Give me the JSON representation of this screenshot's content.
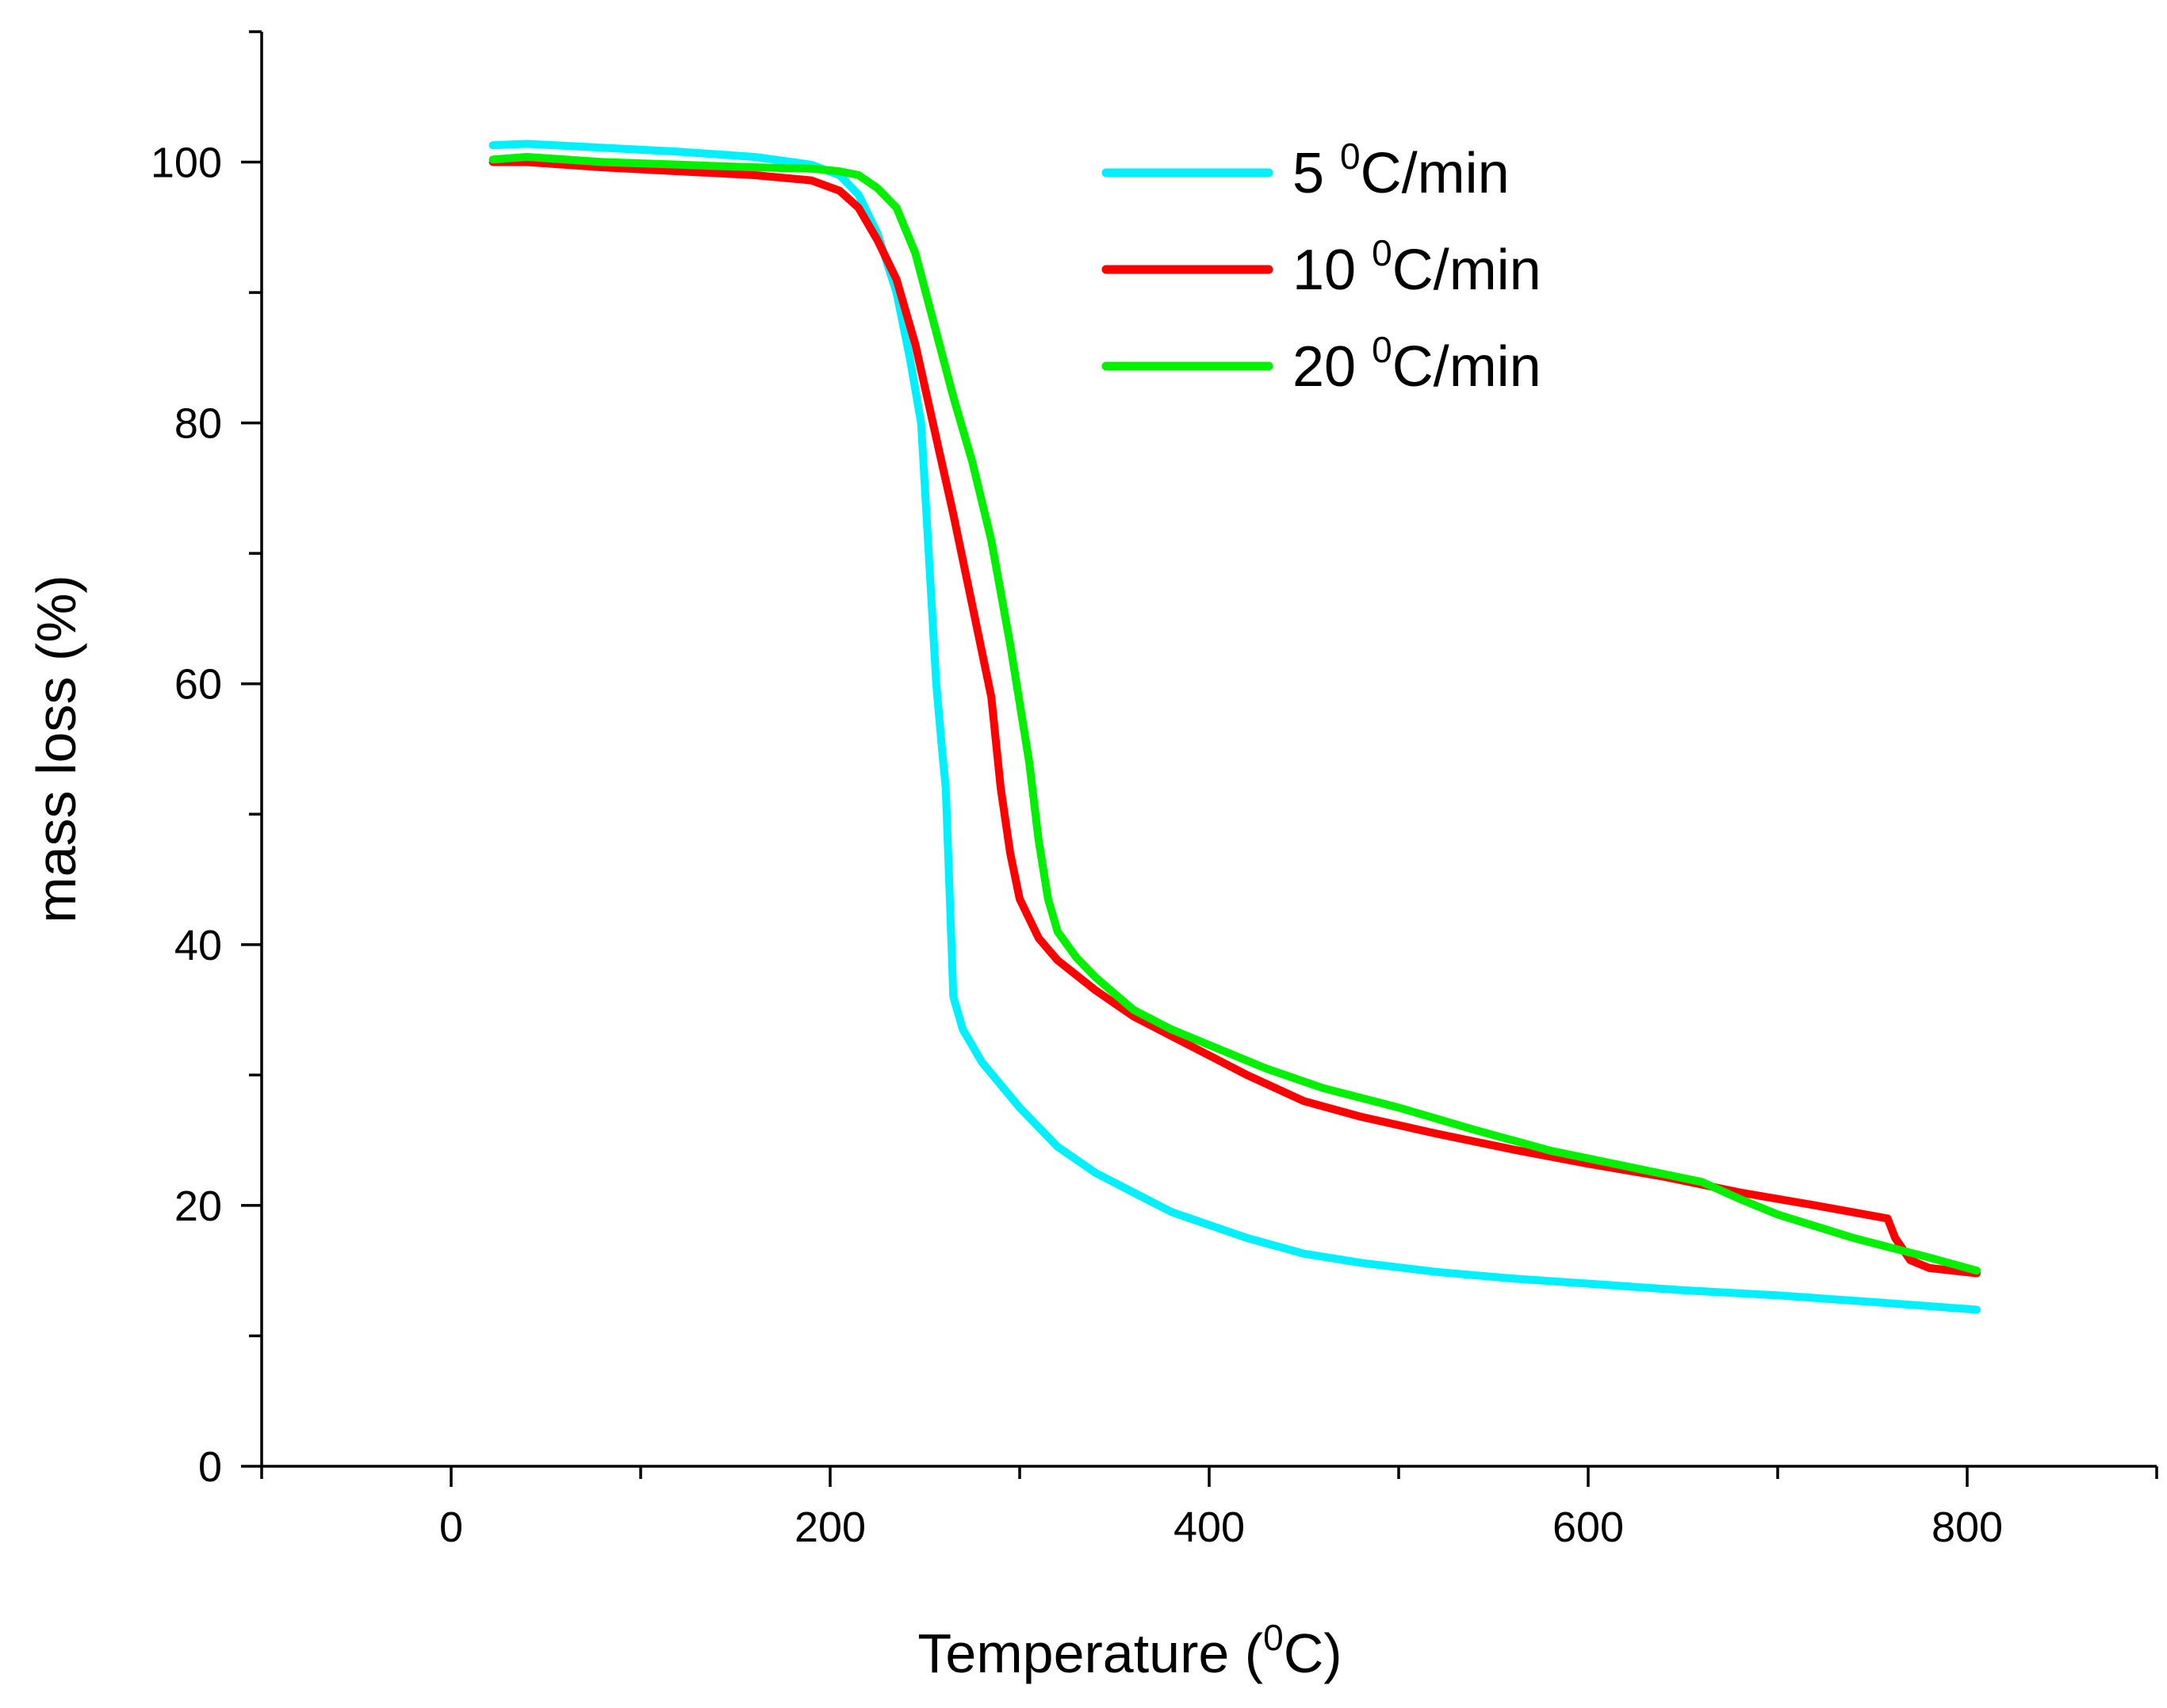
{
  "chart_data": {
    "type": "line",
    "xlabel": "Temperature (⁰C)",
    "xlabel_main": "Temperature (",
    "xlabel_sup": "0",
    "xlabel_end": "C)",
    "ylabel": "mass loss (%)",
    "xlim": [
      -100,
      900
    ],
    "ylim": [
      0,
      110
    ],
    "x_ticks": [
      0,
      200,
      400,
      600,
      800
    ],
    "x_minor_ticks": [
      -100,
      100,
      300,
      500,
      700,
      900
    ],
    "y_ticks": [
      0,
      20,
      40,
      60,
      80,
      100
    ],
    "y_minor_ticks": [
      10,
      30,
      50,
      70,
      90,
      110
    ],
    "grid": false,
    "legend_position": "top-right",
    "series": [
      {
        "name": "5 ⁰C/min",
        "label_main": "5 ",
        "label_sup": "0",
        "label_end": "C/min",
        "color": "#00f0ff",
        "points": [
          [
            22,
            101.3
          ],
          [
            40,
            101.4
          ],
          [
            80,
            101.1
          ],
          [
            120,
            100.8
          ],
          [
            160,
            100.4
          ],
          [
            190,
            99.8
          ],
          [
            205,
            99.0
          ],
          [
            215,
            97.5
          ],
          [
            225,
            94.5
          ],
          [
            235,
            90.0
          ],
          [
            242,
            85.0
          ],
          [
            248,
            80.0
          ],
          [
            252,
            70.0
          ],
          [
            256,
            60.0
          ],
          [
            259,
            55.0
          ],
          [
            261,
            52.0
          ],
          [
            262,
            48.0
          ],
          [
            263,
            44.0
          ],
          [
            264,
            40.0
          ],
          [
            265,
            36.0
          ],
          [
            270,
            33.5
          ],
          [
            280,
            31.0
          ],
          [
            300,
            27.5
          ],
          [
            320,
            24.5
          ],
          [
            340,
            22.5
          ],
          [
            360,
            21.0
          ],
          [
            380,
            19.5
          ],
          [
            400,
            18.5
          ],
          [
            420,
            17.5
          ],
          [
            450,
            16.3
          ],
          [
            480,
            15.6
          ],
          [
            520,
            14.9
          ],
          [
            560,
            14.4
          ],
          [
            600,
            14.0
          ],
          [
            650,
            13.5
          ],
          [
            700,
            13.1
          ],
          [
            750,
            12.6
          ],
          [
            805,
            12.0
          ]
        ]
      },
      {
        "name": "10 ⁰C/min",
        "label_main": "10 ",
        "label_sup": "0",
        "label_end": "C/min",
        "color": "#ff0000",
        "points": [
          [
            22,
            100.0
          ],
          [
            40,
            100.0
          ],
          [
            80,
            99.6
          ],
          [
            120,
            99.3
          ],
          [
            160,
            99.0
          ],
          [
            190,
            98.6
          ],
          [
            205,
            97.8
          ],
          [
            215,
            96.5
          ],
          [
            225,
            94.0
          ],
          [
            235,
            91.0
          ],
          [
            245,
            86.0
          ],
          [
            255,
            79.5
          ],
          [
            265,
            73.0
          ],
          [
            275,
            66.0
          ],
          [
            285,
            59.0
          ],
          [
            290,
            52.0
          ],
          [
            295,
            47.0
          ],
          [
            300,
            43.5
          ],
          [
            310,
            40.5
          ],
          [
            320,
            38.8
          ],
          [
            340,
            36.5
          ],
          [
            360,
            34.5
          ],
          [
            380,
            33.0
          ],
          [
            400,
            31.5
          ],
          [
            420,
            30.0
          ],
          [
            450,
            28.0
          ],
          [
            480,
            26.8
          ],
          [
            520,
            25.5
          ],
          [
            560,
            24.3
          ],
          [
            600,
            23.2
          ],
          [
            640,
            22.2
          ],
          [
            680,
            21.0
          ],
          [
            720,
            20.0
          ],
          [
            758,
            19.0
          ],
          [
            762,
            17.5
          ],
          [
            770,
            15.8
          ],
          [
            780,
            15.2
          ],
          [
            805,
            14.8
          ]
        ]
      },
      {
        "name": "20 ⁰C/min",
        "label_main": "20 ",
        "label_sup": "0",
        "label_end": "C/min",
        "color": "#00f000",
        "points": [
          [
            22,
            100.2
          ],
          [
            40,
            100.4
          ],
          [
            80,
            100.0
          ],
          [
            120,
            99.8
          ],
          [
            160,
            99.6
          ],
          [
            190,
            99.5
          ],
          [
            205,
            99.3
          ],
          [
            215,
            99.0
          ],
          [
            225,
            98.0
          ],
          [
            235,
            96.5
          ],
          [
            245,
            93.0
          ],
          [
            255,
            87.5
          ],
          [
            265,
            82.0
          ],
          [
            275,
            77.0
          ],
          [
            285,
            71.0
          ],
          [
            295,
            63.0
          ],
          [
            305,
            54.0
          ],
          [
            310,
            48.0
          ],
          [
            315,
            43.5
          ],
          [
            320,
            41.0
          ],
          [
            330,
            39.0
          ],
          [
            340,
            37.5
          ],
          [
            360,
            35.0
          ],
          [
            380,
            33.5
          ],
          [
            400,
            32.3
          ],
          [
            430,
            30.5
          ],
          [
            460,
            29.0
          ],
          [
            500,
            27.5
          ],
          [
            540,
            25.8
          ],
          [
            580,
            24.2
          ],
          [
            620,
            23.0
          ],
          [
            660,
            21.8
          ],
          [
            680,
            20.5
          ],
          [
            700,
            19.3
          ],
          [
            740,
            17.5
          ],
          [
            780,
            16.0
          ],
          [
            805,
            15.0
          ]
        ]
      }
    ]
  }
}
